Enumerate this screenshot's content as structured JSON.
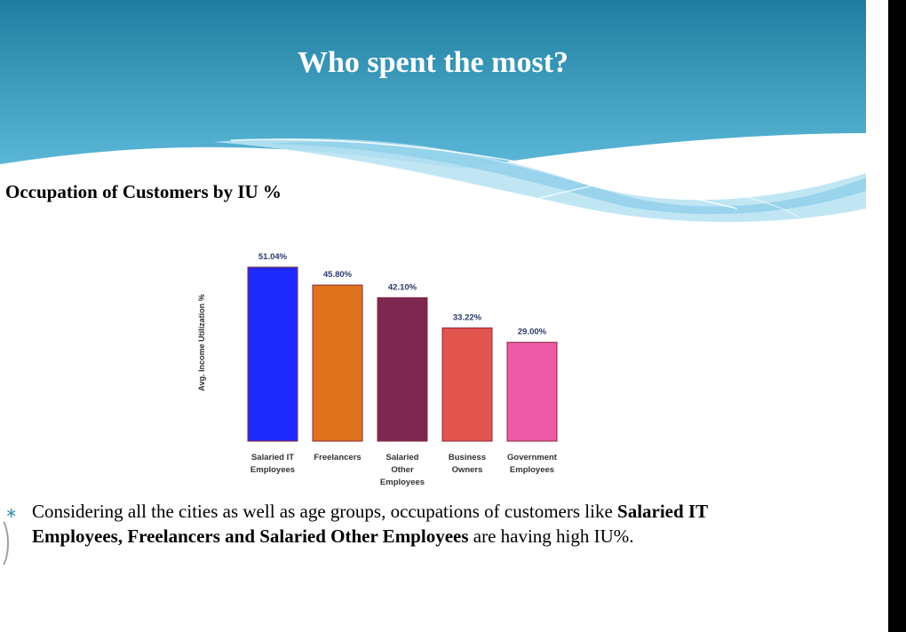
{
  "slide": {
    "title": "Who spent the most?",
    "chart_heading": "Occupation of Customers by IU %"
  },
  "bullet": {
    "text_plain_1": "Considering all the cities as well as age groups, occupations of customers like ",
    "text_bold": "Salaried IT Employees, Freelancers and Salaried Other Employees",
    "text_plain_2": " are having high IU%."
  },
  "theme": {
    "header_top": "#1f7ea0",
    "header_bottom": "#5cb8d8",
    "wave_light": "#b9e3f3",
    "bullet_color": "#3a8fb0"
  },
  "chart_data": {
    "type": "bar",
    "title": "",
    "xlabel": "",
    "ylabel": "Avg. Income Utilization %",
    "ylim": [
      0,
      55
    ],
    "grid": false,
    "categories": [
      [
        "Salaried IT",
        "Employees"
      ],
      [
        "Freelancers"
      ],
      [
        "Salaried",
        "Other",
        "Employees"
      ],
      [
        "Business",
        "Owners"
      ],
      [
        "Government",
        "Employees"
      ]
    ],
    "values": [
      51.04,
      45.8,
      42.1,
      33.22,
      29.0
    ],
    "value_labels": [
      "51.04%",
      "45.80%",
      "42.10%",
      "33.22%",
      "29.00%"
    ],
    "colors": [
      "#1d2bff",
      "#e0731d",
      "#7b2750",
      "#e2554f",
      "#ee5aa8"
    ]
  }
}
